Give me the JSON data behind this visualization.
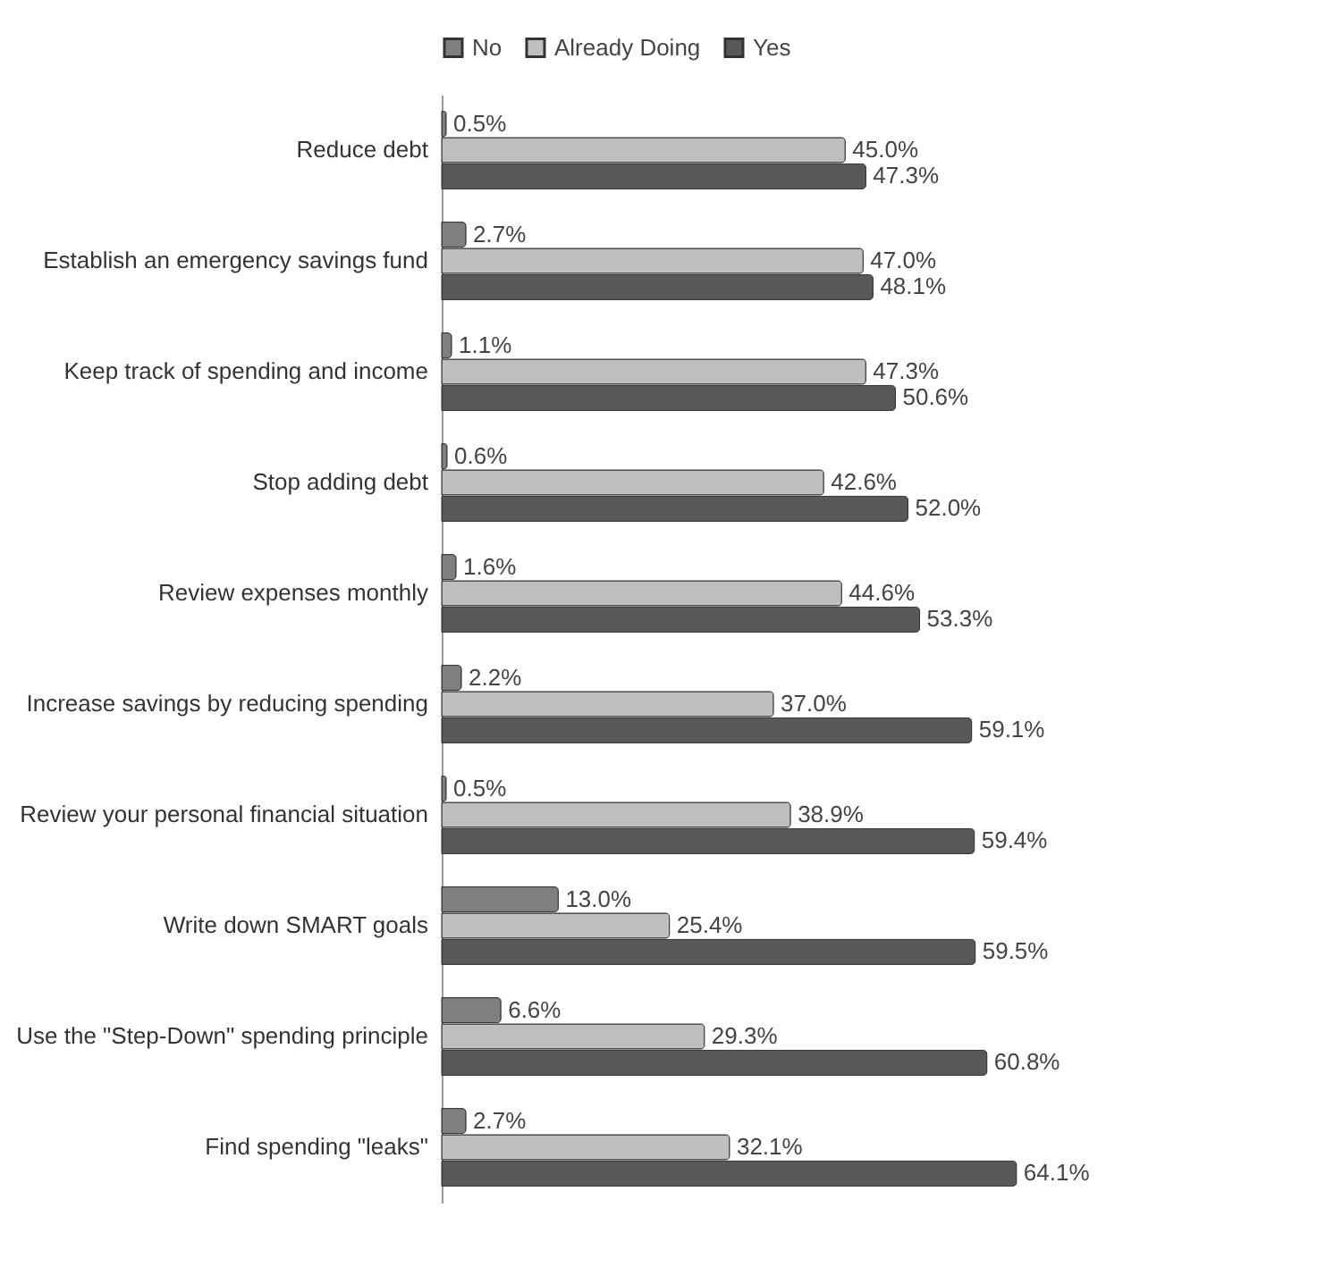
{
  "chart_data": {
    "type": "bar",
    "orientation": "horizontal",
    "legend": "top",
    "grid": false,
    "categories": [
      "Reduce debt",
      "Establish an emergency savings fund",
      "Keep track of spending and income",
      "Stop adding debt",
      "Review expenses monthly",
      "Increase savings by reducing spending",
      "Review your personal financial situation",
      "Write down SMART goals",
      "Use the \"Step-Down\" spending principle",
      "Find spending \"leaks\""
    ],
    "series": [
      {
        "name": "No",
        "color": "#7f7f7f",
        "values": [
          0.5,
          2.7,
          1.1,
          0.6,
          1.6,
          2.2,
          0.5,
          13.0,
          6.6,
          2.7
        ],
        "value_labels": [
          "0.5%",
          "2.7%",
          "1.1%",
          "0.6%",
          "1.6%",
          "2.2%",
          "0.5%",
          "13.0%",
          "6.6%",
          "2.7%"
        ]
      },
      {
        "name": "Already Doing",
        "color": "#bfbfbf",
        "values": [
          45.0,
          47.0,
          47.3,
          42.6,
          44.6,
          37.0,
          38.9,
          25.4,
          29.3,
          32.1
        ],
        "value_labels": [
          "45.0%",
          "47.0%",
          "47.3%",
          "42.6%",
          "44.6%",
          "37.0%",
          "38.9%",
          "25.4%",
          "29.3%",
          "32.1%"
        ]
      },
      {
        "name": "Yes",
        "color": "#595959",
        "values": [
          47.3,
          48.1,
          50.6,
          52.0,
          53.3,
          59.1,
          59.4,
          59.5,
          60.8,
          64.1
        ],
        "value_labels": [
          "47.3%",
          "48.1%",
          "50.6%",
          "52.0%",
          "53.3%",
          "59.1%",
          "59.4%",
          "59.5%",
          "60.8%",
          "64.1%"
        ]
      }
    ]
  }
}
